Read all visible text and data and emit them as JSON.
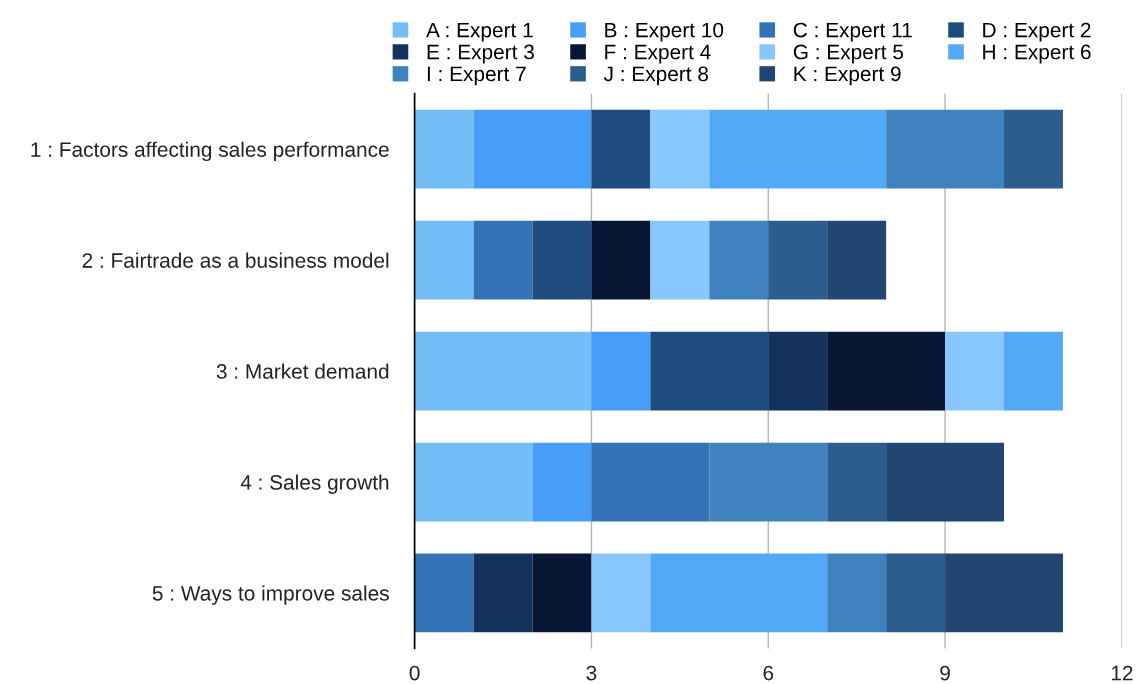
{
  "chart_data": {
    "type": "bar",
    "orientation": "horizontal",
    "stacked": true,
    "categories": [
      "1 : Factors affecting sales performance",
      "2 : Fairtrade as a business model",
      "3 : Market demand",
      "4 : Sales growth",
      "5 : Ways to improve sales"
    ],
    "series": [
      {
        "name": "A : Expert 1",
        "color": "#74bef8",
        "values": [
          1,
          1,
          3,
          2,
          0
        ]
      },
      {
        "name": "B : Expert 10",
        "color": "#479ef8",
        "values": [
          2,
          0,
          1,
          1,
          0
        ]
      },
      {
        "name": "C : Expert 11",
        "color": "#3473b5",
        "values": [
          0,
          1,
          0,
          2,
          1
        ]
      },
      {
        "name": "D : Expert 2",
        "color": "#1f4c7f",
        "values": [
          1,
          1,
          2,
          0,
          0
        ]
      },
      {
        "name": "E : Expert 3",
        "color": "#14325e",
        "values": [
          0,
          0,
          1,
          0,
          1
        ]
      },
      {
        "name": "F : Expert 4",
        "color": "#071733",
        "values": [
          0,
          1,
          2,
          0,
          1
        ]
      },
      {
        "name": "G : Expert 5",
        "color": "#87c7fb",
        "values": [
          1,
          1,
          1,
          0,
          1
        ]
      },
      {
        "name": "H : Expert 6",
        "color": "#54a9f6",
        "values": [
          3,
          0,
          1,
          0,
          3
        ]
      },
      {
        "name": "I : Expert 7",
        "color": "#3f82bd",
        "values": [
          2,
          1,
          0,
          2,
          1
        ]
      },
      {
        "name": "J : Expert 8",
        "color": "#2d5d8d",
        "values": [
          1,
          1,
          0,
          1,
          1
        ]
      },
      {
        "name": "K : Expert 9",
        "color": "#214671",
        "values": [
          0,
          1,
          0,
          2,
          2
        ]
      }
    ],
    "xlim": [
      0,
      12
    ],
    "xticks": [
      0,
      3,
      6,
      9,
      12
    ],
    "grid": "x",
    "legend": "top"
  }
}
